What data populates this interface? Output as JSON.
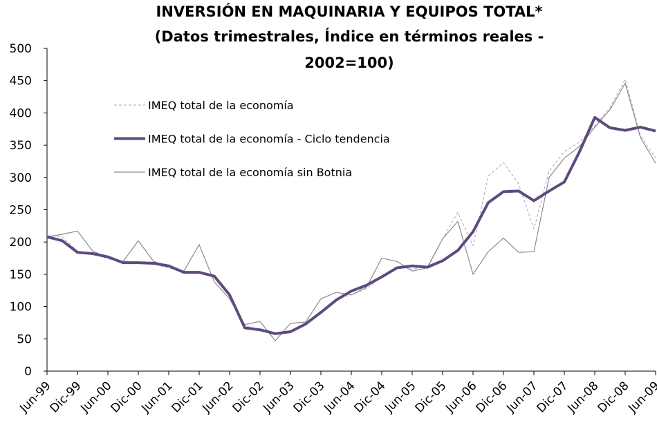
{
  "chart_data": {
    "type": "line",
    "title": [
      "INVERSIÓN EN MAQUINARIA Y EQUIPOS TOTAL*",
      "(Datos trimestrales, Índice en términos reales -",
      "2002=100)"
    ],
    "categories": [
      "Jun-99",
      null,
      "Dic-99",
      null,
      "Jun-00",
      null,
      "Dic-00",
      null,
      "Jun-01",
      null,
      "Dic-01",
      null,
      "Jun-02",
      null,
      "Dic-02",
      null,
      "Jun-03",
      null,
      "Dic-03",
      null,
      "Jun-04",
      null,
      "Dic-04",
      null,
      "Jun-05",
      null,
      "Dic-05",
      null,
      "Jun-06",
      null,
      "Dic-06",
      null,
      "Jun-07",
      null,
      "Dic-07",
      null,
      "Jun-08",
      null,
      "Dic-08",
      null,
      "Jun-09"
    ],
    "series": [
      {
        "name": "IMEQ total de la economía",
        "color": "#a9a0d0",
        "dash": true,
        "width": 1,
        "values": [
          210,
          208,
          186,
          182,
          174,
          170,
          168,
          166,
          160,
          152,
          155,
          145,
          118,
          70,
          65,
          57,
          62,
          72,
          92,
          112,
          118,
          128,
          146,
          162,
          158,
          162,
          205,
          246,
          194,
          302,
          323,
          290,
          220,
          310,
          340,
          355,
          380,
          408,
          452,
          365,
          330
        ]
      },
      {
        "name": "IMEQ total de la economía - Ciclo tendencia",
        "color": "#5e4a7e",
        "dash": false,
        "width": 4,
        "values": [
          208,
          202,
          184,
          182,
          177,
          168,
          168,
          167,
          163,
          153,
          153,
          147,
          118,
          67,
          64,
          58,
          61,
          73,
          91,
          110,
          124,
          133,
          146,
          160,
          163,
          161,
          171,
          187,
          216,
          261,
          278,
          279,
          264,
          279,
          293,
          340,
          393,
          377,
          373,
          378,
          372
        ]
      },
      {
        "name": "IMEQ total de la economía sin Botnia",
        "color": "#8a8a8a",
        "dash": false,
        "width": 1.2,
        "values": [
          208,
          212,
          217,
          186,
          176,
          170,
          202,
          170,
          162,
          155,
          196,
          138,
          112,
          72,
          77,
          47,
          74,
          76,
          112,
          122,
          118,
          130,
          175,
          170,
          155,
          160,
          205,
          232,
          150,
          185,
          206,
          184,
          185,
          300,
          330,
          348,
          378,
          405,
          446,
          362,
          322
        ]
      }
    ],
    "ylim": [
      0,
      500
    ],
    "yticks": [
      0,
      50,
      100,
      150,
      200,
      250,
      300,
      350,
      400,
      450,
      500
    ],
    "grid": false
  }
}
